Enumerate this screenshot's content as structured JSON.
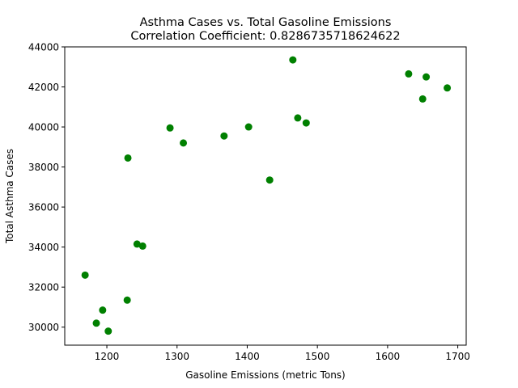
{
  "chart_data": {
    "type": "scatter",
    "title": "Asthma Cases vs. Total Gasoline Emissions",
    "subtitle": "Correlation Coefficient: 0.8286735718624622",
    "xlabel": "Gasoline Emissions (metric Tons)",
    "ylabel": "Total Asthma Cases",
    "xlim": [
      1140,
      1712
    ],
    "ylim": [
      29100,
      44000
    ],
    "xticks": [
      1200,
      1300,
      1400,
      1500,
      1600,
      1700
    ],
    "yticks": [
      30000,
      32000,
      34000,
      36000,
      38000,
      40000,
      42000,
      44000
    ],
    "grid": false,
    "marker_color": "#008000",
    "points": [
      {
        "x": 1169,
        "y": 32600
      },
      {
        "x": 1185,
        "y": 30200
      },
      {
        "x": 1194,
        "y": 30850
      },
      {
        "x": 1202,
        "y": 29800
      },
      {
        "x": 1229,
        "y": 31350
      },
      {
        "x": 1230,
        "y": 38450
      },
      {
        "x": 1243,
        "y": 34150
      },
      {
        "x": 1251,
        "y": 34050
      },
      {
        "x": 1290,
        "y": 39950
      },
      {
        "x": 1309,
        "y": 39200
      },
      {
        "x": 1367,
        "y": 39550
      },
      {
        "x": 1402,
        "y": 40000
      },
      {
        "x": 1432,
        "y": 37350
      },
      {
        "x": 1465,
        "y": 43350
      },
      {
        "x": 1472,
        "y": 40450
      },
      {
        "x": 1484,
        "y": 40200
      },
      {
        "x": 1630,
        "y": 42650
      },
      {
        "x": 1650,
        "y": 41400
      },
      {
        "x": 1655,
        "y": 42500
      },
      {
        "x": 1685,
        "y": 41950
      }
    ]
  }
}
